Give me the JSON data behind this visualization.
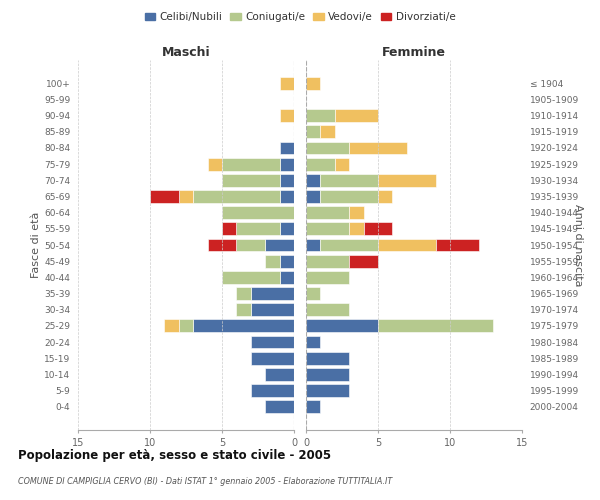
{
  "age_groups": [
    "0-4",
    "5-9",
    "10-14",
    "15-19",
    "20-24",
    "25-29",
    "30-34",
    "35-39",
    "40-44",
    "45-49",
    "50-54",
    "55-59",
    "60-64",
    "65-69",
    "70-74",
    "75-79",
    "80-84",
    "85-89",
    "90-94",
    "95-99",
    "100+"
  ],
  "birth_years": [
    "2000-2004",
    "1995-1999",
    "1990-1994",
    "1985-1989",
    "1980-1984",
    "1975-1979",
    "1970-1974",
    "1965-1969",
    "1960-1964",
    "1955-1959",
    "1950-1954",
    "1945-1949",
    "1940-1944",
    "1935-1939",
    "1930-1934",
    "1925-1929",
    "1920-1924",
    "1915-1919",
    "1910-1914",
    "1905-1909",
    "≤ 1904"
  ],
  "colors": {
    "celibi": "#4a6fa5",
    "coniugati": "#b5c98e",
    "vedovi": "#f0c060",
    "divorziati": "#cc2222"
  },
  "maschi": {
    "celibi": [
      2,
      3,
      2,
      3,
      3,
      7,
      3,
      3,
      1,
      1,
      2,
      1,
      0,
      1,
      1,
      1,
      1,
      0,
      0,
      0,
      0
    ],
    "coniugati": [
      0,
      0,
      0,
      0,
      0,
      1,
      1,
      1,
      4,
      1,
      2,
      3,
      5,
      6,
      4,
      4,
      0,
      0,
      0,
      0,
      0
    ],
    "vedovi": [
      0,
      0,
      0,
      0,
      0,
      1,
      0,
      0,
      0,
      0,
      0,
      0,
      0,
      1,
      0,
      1,
      0,
      0,
      1,
      0,
      1
    ],
    "divorziati": [
      0,
      0,
      0,
      0,
      0,
      0,
      0,
      0,
      0,
      0,
      2,
      1,
      0,
      2,
      0,
      0,
      0,
      0,
      0,
      0,
      0
    ]
  },
  "femmine": {
    "celibi": [
      1,
      3,
      3,
      3,
      1,
      5,
      0,
      0,
      0,
      0,
      1,
      0,
      0,
      1,
      1,
      0,
      0,
      0,
      0,
      0,
      0
    ],
    "coniugati": [
      0,
      0,
      0,
      0,
      0,
      8,
      3,
      1,
      3,
      3,
      4,
      3,
      3,
      4,
      4,
      2,
      3,
      1,
      2,
      0,
      0
    ],
    "vedovi": [
      0,
      0,
      0,
      0,
      0,
      0,
      0,
      0,
      0,
      0,
      4,
      1,
      1,
      1,
      4,
      1,
      4,
      1,
      3,
      0,
      1
    ],
    "divorziati": [
      0,
      0,
      0,
      0,
      0,
      0,
      0,
      0,
      0,
      2,
      3,
      2,
      0,
      0,
      0,
      0,
      0,
      0,
      0,
      0,
      0
    ]
  },
  "xlim": 15,
  "title": "Popolazione per età, sesso e stato civile - 2005",
  "subtitle": "COMUNE DI CAMPIGLIA CERVO (BI) - Dati ISTAT 1° gennaio 2005 - Elaborazione TUTTITALIA.IT",
  "ylabel_left": "Fasce di età",
  "ylabel_right": "Anni di nascita",
  "xlabel_left": "Maschi",
  "xlabel_right": "Femmine",
  "background_color": "#ffffff",
  "grid_color": "#cccccc"
}
